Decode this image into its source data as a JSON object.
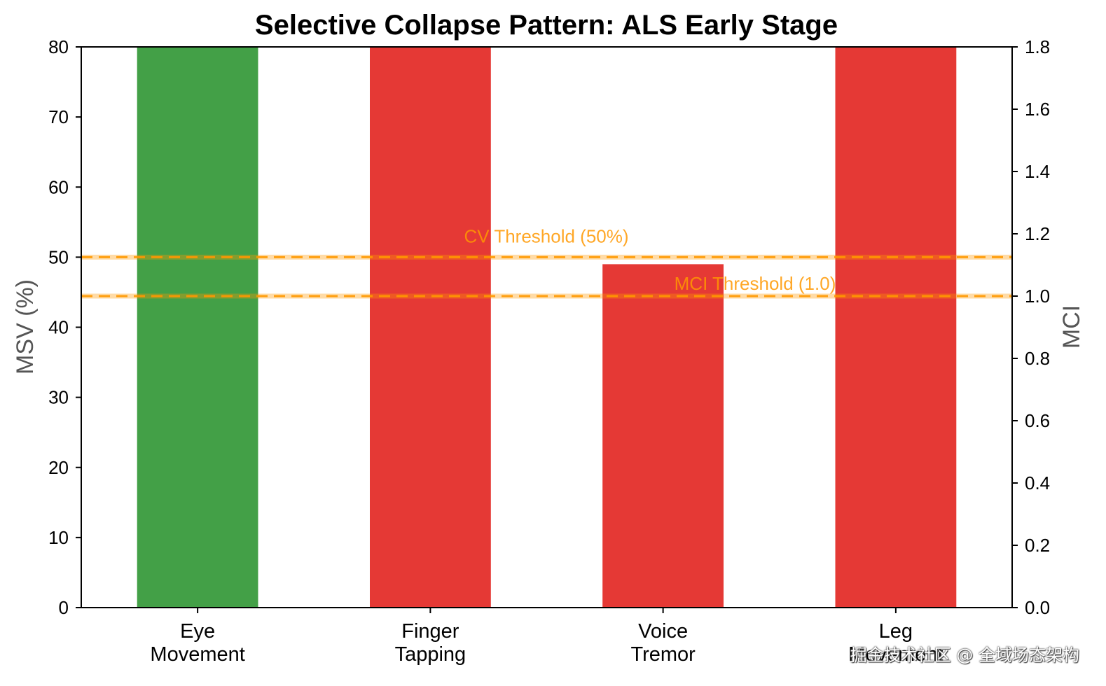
{
  "chart_data": {
    "type": "bar",
    "title": "Selective Collapse Pattern: ALS Early Stage",
    "categories": [
      [
        "Eye",
        "Movement"
      ],
      [
        "Finger",
        "Tapping"
      ],
      [
        "Voice",
        "Tremor"
      ],
      [
        "Leg",
        "Movement"
      ]
    ],
    "values": [
      80,
      80,
      49,
      80
    ],
    "bar_colors": [
      "#43a047",
      "#e53935",
      "#e53935",
      "#e53935"
    ],
    "ylabel": "MSV (%)",
    "ylim": [
      0,
      80
    ],
    "yticks": [
      "0",
      "10",
      "20",
      "30",
      "40",
      "50",
      "60",
      "70",
      "80"
    ],
    "y2label": "MCI",
    "y2lim": [
      0,
      1.8
    ],
    "y2ticks": [
      "0.0",
      "0.2",
      "0.4",
      "0.6",
      "0.8",
      "1.0",
      "1.2",
      "1.4",
      "1.6",
      "1.8"
    ],
    "thresholds": [
      {
        "label": "CV Threshold (50%)",
        "axis": "left",
        "value": 50,
        "color": "#ff9800"
      },
      {
        "label": "MCI Threshold (1.0)",
        "axis": "right",
        "value": 1.0,
        "color": "#ff9800"
      }
    ],
    "grid": false
  },
  "watermark": "掘金技术社区 @ 全域场态架构"
}
